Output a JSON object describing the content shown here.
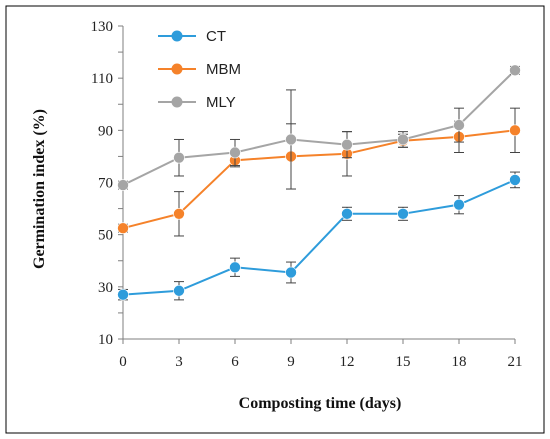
{
  "chart_data": {
    "type": "line",
    "title": "",
    "xlabel": "Composting time (days)",
    "ylabel": "Germination index (%)",
    "x": [
      0,
      3,
      6,
      9,
      12,
      15,
      18,
      21
    ],
    "xlim": [
      0,
      21
    ],
    "ylim": [
      10,
      130
    ],
    "yticks": [
      10,
      30,
      50,
      70,
      90,
      110,
      130
    ],
    "grid": false,
    "legend_position": "top-left",
    "series": [
      {
        "name": "CT",
        "color": "#2E9CDB",
        "values": [
          27,
          28.5,
          37.5,
          35.5,
          58,
          58,
          61.5,
          71
        ],
        "errors": [
          2,
          3.5,
          3.5,
          4,
          2.5,
          2.5,
          3.5,
          3
        ]
      },
      {
        "name": "MBM",
        "color": "#F5822A",
        "values": [
          52.5,
          58,
          78.5,
          80,
          81,
          86,
          87.5,
          90
        ],
        "errors": [
          1.5,
          8.5,
          2.5,
          12.5,
          8.5,
          2.5,
          6,
          8.5
        ]
      },
      {
        "name": "MLY",
        "color": "#A5A5A5",
        "values": [
          69,
          79.5,
          81.5,
          86.5,
          84.5,
          86.5,
          92,
          113
        ],
        "errors": [
          1.5,
          7,
          5,
          19,
          5,
          3,
          6.5,
          1.5
        ]
      }
    ]
  }
}
